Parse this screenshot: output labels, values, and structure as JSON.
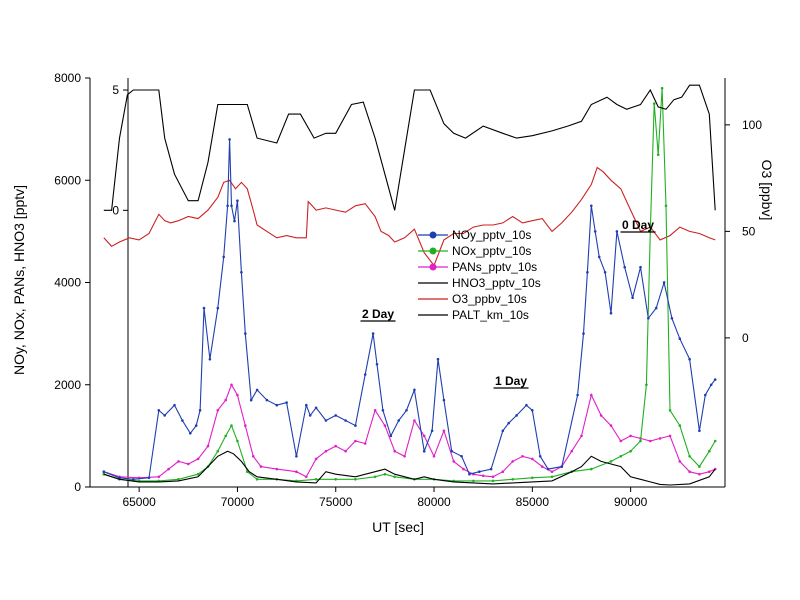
{
  "chart_data": {
    "type": "line",
    "xlabel": "UT [sec]",
    "ylabel_left": "NOy, NOx, PANs, HNO3 [pptv]",
    "ylabel_right": "O3 [ppbv]",
    "xlim": [
      62500,
      94800
    ],
    "ylim_left": [
      0,
      8000
    ],
    "x_ticks": [
      65000,
      70000,
      75000,
      80000,
      85000,
      90000
    ],
    "y_ticks_left": [
      0,
      2000,
      4000,
      6000,
      8000
    ],
    "o3_axis": {
      "range": [
        -70,
        122
      ],
      "ticks": [
        0,
        50,
        100
      ]
    },
    "alt_axis": {
      "range": [
        -11.5,
        5.5
      ],
      "ticks": [
        0,
        5
      ]
    },
    "grid": false,
    "legend_position": "center",
    "series": [
      {
        "name": "NOy_pptv_10s",
        "color": "#1f3fb0",
        "marker": true,
        "axis": "left",
        "x": [
          63200,
          64000,
          64700,
          65500,
          66000,
          66300,
          66800,
          67200,
          67600,
          67900,
          68100,
          68300,
          68600,
          69000,
          69300,
          69500,
          69600,
          69700,
          69850,
          70000,
          70200,
          70400,
          70700,
          71000,
          71500,
          72000,
          72500,
          73000,
          73500,
          73700,
          74000,
          74500,
          75000,
          75500,
          76000,
          76500,
          76900,
          77100,
          77400,
          77800,
          78200,
          78600,
          79000,
          79500,
          79900,
          80200,
          80500,
          80900,
          81400,
          81800,
          82300,
          82900,
          83500,
          83800,
          84200,
          84700,
          85000,
          85400,
          85800,
          86500,
          87300,
          87600,
          87800,
          88000,
          88200,
          88400,
          88700,
          89000,
          89300,
          89700,
          90100,
          90500,
          90900,
          91300,
          91700,
          92100,
          92500,
          93000,
          93500,
          93800,
          94100,
          94300
        ],
        "y": [
          300,
          180,
          150,
          180,
          1500,
          1400,
          1600,
          1300,
          1050,
          1200,
          1500,
          3500,
          2500,
          3500,
          4500,
          5500,
          6800,
          5500,
          5200,
          5600,
          4200,
          3000,
          1700,
          1900,
          1700,
          1600,
          1650,
          600,
          1600,
          1400,
          1550,
          1300,
          1400,
          1300,
          1200,
          2200,
          3000,
          2400,
          1500,
          1000,
          1300,
          1500,
          1900,
          700,
          1100,
          2500,
          1700,
          700,
          600,
          250,
          300,
          350,
          1100,
          1250,
          1400,
          1600,
          1500,
          600,
          350,
          400,
          1800,
          3000,
          4200,
          5500,
          5000,
          4500,
          4200,
          3400,
          5000,
          4300,
          3700,
          4300,
          3300,
          3500,
          4000,
          3300,
          2900,
          2500,
          1100,
          1800,
          2000,
          2100
        ]
      },
      {
        "name": "NOx_pptv_10s",
        "color": "#22b022",
        "marker": true,
        "axis": "left",
        "x": [
          63200,
          64000,
          65000,
          66000,
          67000,
          68000,
          68500,
          69000,
          69400,
          69700,
          70000,
          70500,
          71000,
          72000,
          73000,
          74000,
          75000,
          76000,
          77000,
          77500,
          78000,
          79000,
          80000,
          81000,
          82000,
          83000,
          84000,
          85000,
          86000,
          87000,
          88000,
          89000,
          89500,
          90000,
          90500,
          90800,
          91000,
          91200,
          91400,
          91600,
          91800,
          92000,
          92500,
          93000,
          93500,
          94000,
          94300
        ],
        "y": [
          250,
          150,
          120,
          120,
          150,
          250,
          400,
          700,
          1000,
          1200,
          900,
          300,
          150,
          150,
          120,
          150,
          150,
          150,
          200,
          250,
          200,
          150,
          150,
          120,
          120,
          120,
          150,
          180,
          200,
          300,
          350,
          500,
          600,
          700,
          900,
          2000,
          5000,
          7500,
          6500,
          7800,
          5500,
          1500,
          1200,
          600,
          400,
          700,
          900
        ]
      },
      {
        "name": "PANs_pptv_10s",
        "color": "#e020c8",
        "marker": true,
        "axis": "left",
        "x": [
          63200,
          64000,
          65000,
          66000,
          66500,
          67000,
          67500,
          68000,
          68500,
          69000,
          69400,
          69700,
          70000,
          70400,
          70800,
          71200,
          72000,
          73000,
          73500,
          74000,
          74500,
          75000,
          75500,
          76000,
          76500,
          77000,
          77500,
          78000,
          78500,
          79000,
          79500,
          80000,
          80500,
          81000,
          81500,
          82000,
          82500,
          83000,
          83500,
          84000,
          84500,
          85000,
          85500,
          86000,
          86500,
          87000,
          87500,
          88000,
          88500,
          89000,
          89500,
          90000,
          90500,
          91000,
          91500,
          92000,
          92500,
          93000,
          93500,
          94000,
          94300
        ],
        "y": [
          300,
          200,
          180,
          200,
          350,
          500,
          450,
          550,
          800,
          1500,
          1700,
          2000,
          1800,
          1200,
          600,
          400,
          350,
          300,
          200,
          550,
          700,
          800,
          700,
          900,
          850,
          1500,
          1200,
          700,
          600,
          1300,
          1000,
          600,
          1100,
          500,
          350,
          250,
          220,
          200,
          300,
          500,
          600,
          550,
          400,
          300,
          400,
          700,
          1000,
          1800,
          1400,
          1200,
          900,
          1000,
          950,
          900,
          950,
          1000,
          500,
          300,
          250,
          300,
          350
        ]
      },
      {
        "name": "HNO3_pptv_10s",
        "color": "#000000",
        "marker": false,
        "axis": "left",
        "x": [
          63200,
          64000,
          65000,
          66000,
          67000,
          68000,
          68500,
          69000,
          69500,
          69800,
          70200,
          70600,
          71000,
          72000,
          73000,
          74000,
          74500,
          75000,
          76000,
          77000,
          77500,
          78000,
          79000,
          79500,
          80000,
          81000,
          82000,
          83000,
          84000,
          85000,
          86000,
          87000,
          87500,
          88000,
          88500,
          89000,
          89500,
          90000,
          90500,
          91000,
          91500,
          92000,
          93000,
          94000,
          94300
        ],
        "y": [
          250,
          150,
          100,
          100,
          120,
          200,
          400,
          600,
          700,
          650,
          500,
          300,
          200,
          150,
          100,
          80,
          300,
          250,
          200,
          300,
          350,
          250,
          150,
          200,
          150,
          100,
          80,
          60,
          80,
          100,
          120,
          300,
          400,
          600,
          500,
          450,
          400,
          200,
          150,
          100,
          50,
          40,
          60,
          200,
          350
        ]
      },
      {
        "name": "O3_ppbv_10s",
        "color": "#cc2222",
        "marker": false,
        "axis": "o3",
        "x": [
          63200,
          63600,
          64000,
          64500,
          65000,
          65500,
          66000,
          66300,
          66600,
          67000,
          67500,
          68000,
          68500,
          69000,
          69300,
          69600,
          69900,
          70200,
          70500,
          70800,
          71000,
          71500,
          72000,
          72500,
          73000,
          73500,
          73600,
          73800,
          74000,
          74500,
          75000,
          75500,
          76000,
          76500,
          77000,
          77300,
          77700,
          78000,
          78500,
          79000,
          79500,
          80000,
          80500,
          81000,
          81500,
          82000,
          82500,
          83000,
          83500,
          84000,
          84500,
          85000,
          85500,
          86000,
          86500,
          87000,
          87500,
          88000,
          88300,
          88600,
          89000,
          89500,
          90000,
          90500,
          91000,
          91500,
          92000,
          92500,
          93000,
          93500,
          94000,
          94300
        ],
        "y": [
          47,
          43,
          45,
          47,
          46,
          49,
          58,
          55,
          54,
          55,
          57,
          56,
          60,
          66,
          73,
          74,
          70,
          73,
          70,
          60,
          53,
          50,
          47,
          48,
          47,
          47,
          64,
          62,
          60,
          61,
          60,
          59,
          62,
          63,
          57,
          50,
          48,
          45,
          47,
          51,
          40,
          34,
          46,
          49,
          49,
          52,
          53,
          53,
          54,
          57,
          54,
          55,
          56,
          50,
          54,
          59,
          65,
          72,
          80,
          78,
          74,
          70,
          60,
          50,
          52,
          46,
          48,
          52,
          50,
          49,
          47,
          46
        ]
      },
      {
        "name": "PALT_km_10s",
        "color": "#000000",
        "marker": false,
        "axis": "alt",
        "x": [
          63200,
          63600,
          64000,
          64400,
          64700,
          65000,
          66000,
          66300,
          66800,
          67500,
          68000,
          68500,
          69000,
          70500,
          71000,
          72000,
          72600,
          73200,
          73900,
          74500,
          75000,
          75800,
          76400,
          77000,
          77500,
          78000,
          78600,
          79000,
          79800,
          80500,
          81000,
          81600,
          82500,
          83500,
          84200,
          85000,
          86000,
          86800,
          87500,
          88000,
          88800,
          89300,
          89800,
          90500,
          91000,
          91400,
          91800,
          92200,
          92600,
          93000,
          93500,
          94000,
          94300
        ],
        "y": [
          0,
          0,
          3,
          4.8,
          5,
          5,
          5,
          3,
          1.5,
          0.4,
          0.4,
          2,
          4.4,
          4.4,
          3,
          2.8,
          4,
          4,
          3,
          3.2,
          3.2,
          4.4,
          4.5,
          3,
          1.5,
          0,
          3,
          5,
          5,
          3.6,
          3.2,
          3,
          3.5,
          3.2,
          3,
          3.1,
          3.3,
          3.5,
          3.7,
          4.4,
          4.7,
          4.4,
          4.2,
          4.4,
          5,
          4.3,
          4.2,
          4.6,
          4.7,
          5.2,
          5.2,
          4,
          0
        ]
      }
    ],
    "annotations": [
      "0 Day",
      "1 Day",
      "2 Day"
    ]
  }
}
